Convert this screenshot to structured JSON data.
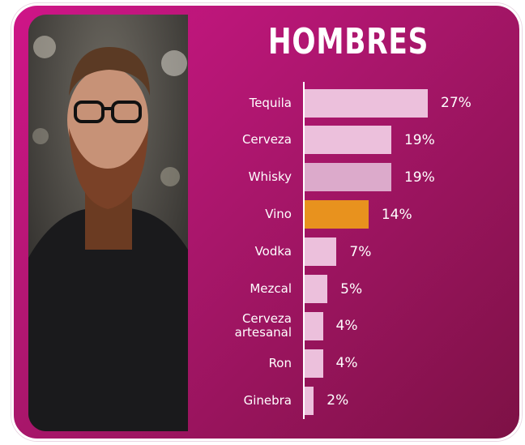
{
  "chart_data": {
    "type": "barh",
    "title": "HOMBRES",
    "categories": [
      "Tequila",
      "Cerveza",
      "Whisky",
      "Vino",
      "Vodka",
      "Mezcal",
      "Cerveza artesanal",
      "Ron",
      "Ginebra"
    ],
    "values": [
      27,
      19,
      19,
      14,
      7,
      5,
      4,
      4,
      2
    ],
    "value_labels": [
      "27%",
      "19%",
      "19%",
      "14%",
      "7%",
      "5%",
      "4%",
      "4%",
      "2%"
    ],
    "colors": [
      "#ecc0dc",
      "#ecc0dc",
      "#dcaacb",
      "#e8921e",
      "#ecc0dc",
      "#ecc0dc",
      "#ecc0dc",
      "#ecc0dc",
      "#ecc0dc"
    ]
  }
}
